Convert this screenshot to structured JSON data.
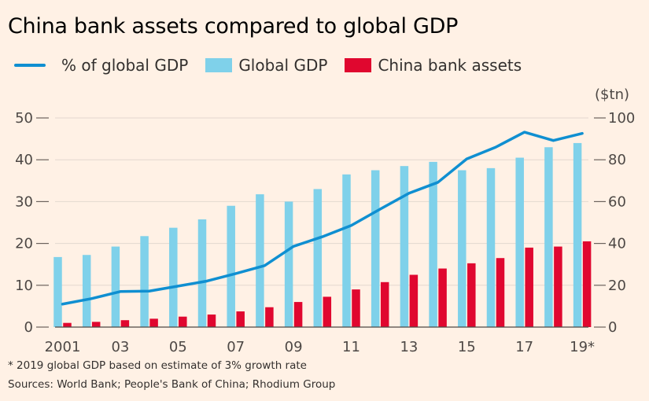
{
  "title": "China bank assets compared to global GDP",
  "legend": {
    "line_label": "% of global GDP",
    "global_label": "Global GDP",
    "china_label": "China bank assets"
  },
  "colors": {
    "line": "#0f8fd1",
    "global": "#7fd1ea",
    "china": "#e0072f",
    "background": "#fff1e5",
    "grid": "#e3d8cf"
  },
  "footnote": "* 2019 global GDP based on estimate of 3% growth rate",
  "sources": "Sources: World Bank; People's Bank of China; Rhodium Group",
  "chart_data": {
    "type": "bar",
    "title": "China bank assets compared to global GDP",
    "x": [
      2001,
      2002,
      2003,
      2004,
      2005,
      2006,
      2007,
      2008,
      2009,
      2010,
      2011,
      2012,
      2013,
      2014,
      2015,
      2016,
      2017,
      2018,
      2019
    ],
    "x_tick_labels": [
      {
        "year": 2001,
        "label": "2001"
      },
      {
        "year": 2003,
        "label": "03"
      },
      {
        "year": 2005,
        "label": "05"
      },
      {
        "year": 2007,
        "label": "07"
      },
      {
        "year": 2009,
        "label": "09"
      },
      {
        "year": 2011,
        "label": "11"
      },
      {
        "year": 2013,
        "label": "13"
      },
      {
        "year": 2015,
        "label": "15"
      },
      {
        "year": 2017,
        "label": "17"
      },
      {
        "year": 2019,
        "label": "19*"
      }
    ],
    "series": [
      {
        "name": "Global GDP",
        "type": "bar",
        "axis": "right",
        "color": "#7fd1ea",
        "values": [
          33.5,
          34.5,
          38.5,
          43.5,
          47.5,
          51.5,
          58,
          63.5,
          60,
          66,
          73,
          75,
          77,
          79,
          75,
          76,
          81,
          86,
          88
        ]
      },
      {
        "name": "China bank assets",
        "type": "bar",
        "axis": "right",
        "color": "#e0072f",
        "values": [
          2,
          2.5,
          3.3,
          4,
          5,
          6,
          7.5,
          9.5,
          12,
          14.5,
          18,
          21.5,
          25,
          28,
          30.5,
          33,
          38,
          38.5,
          41
        ]
      },
      {
        "name": "% of global GDP",
        "type": "line",
        "axis": "left",
        "color": "#0f8fd1",
        "values": [
          5.5,
          6.8,
          8.5,
          8.6,
          9.8,
          11,
          12.8,
          14.7,
          19.3,
          21.6,
          24.3,
          28.2,
          32,
          34.6,
          40.2,
          43,
          46.6,
          44.6,
          46.3
        ]
      }
    ],
    "y_left": {
      "ylim": [
        0,
        50
      ],
      "ticks": [
        0,
        10,
        20,
        30,
        40,
        50
      ],
      "tick_labels": [
        "0",
        "10",
        "20",
        "30",
        "40",
        "50"
      ]
    },
    "y_right": {
      "ylim": [
        0,
        100
      ],
      "ticks": [
        0,
        20,
        40,
        60,
        80,
        100
      ],
      "tick_labels": [
        "0",
        "20",
        "40",
        "60",
        "80",
        "100"
      ],
      "unit": "($tn)"
    },
    "grid": "horizontal"
  }
}
